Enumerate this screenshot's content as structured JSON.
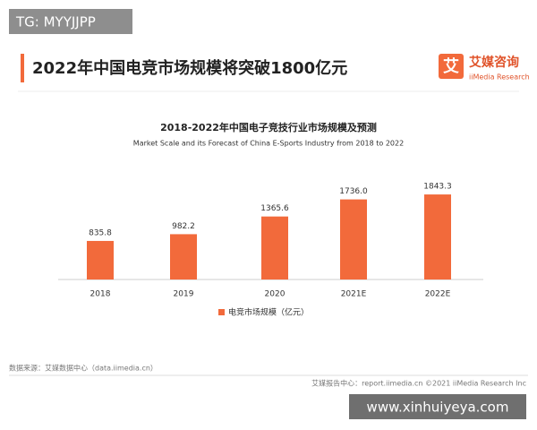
{
  "tag": "TG: MYYJJPP",
  "headline": "2022年中国电竞市场规模将突破1800亿元",
  "logo": {
    "mark": "艾",
    "name": "艾媒咨询",
    "sub": "iiMedia Research"
  },
  "source": "数据来源：艾媒数据中心（data.iimedia.cn）",
  "footer": "艾媒报告中心：report.iimedia.cn ©2021 iiMedia Research Inc",
  "watermark": "www.xinhuiyeya.com",
  "chart_data": {
    "type": "bar",
    "title": "2018-2022年中国电子竞技行业市场规模及预测",
    "subtitle": "Market Scale and its Forecast of China E-Sports Industry from 2018 to 2022",
    "categories": [
      "2018",
      "2019",
      "2020",
      "2021E",
      "2022E"
    ],
    "series": [
      {
        "name": "电竞市场规模（亿元）",
        "color": "#f26a3b",
        "values": [
          835.8,
          982.2,
          1365.6,
          1736.0,
          1843.3
        ],
        "value_labels": [
          "835.8",
          "982.2",
          "1365.6",
          "1736.0",
          "1843.3"
        ]
      }
    ]
  }
}
